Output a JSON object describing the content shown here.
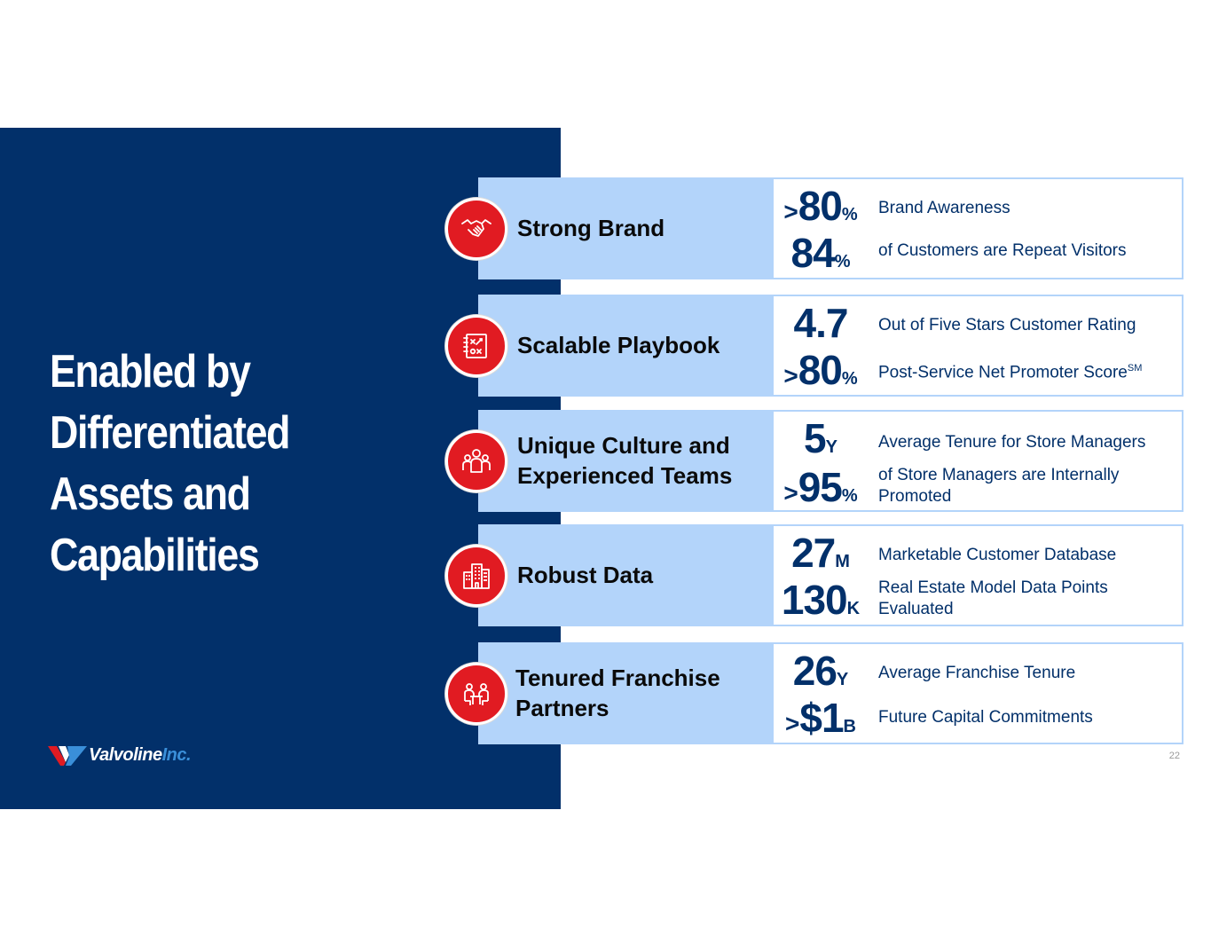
{
  "headline": {
    "line1": "Enabled by",
    "line2": "Differentiated",
    "line3": "Assets and",
    "line4": "Capabilities"
  },
  "logo": {
    "name": "Valvoline",
    "suffix": "Inc."
  },
  "page_number": "22",
  "colors": {
    "navy": "#02306a",
    "light_blue": "#b3d4fa",
    "red": "#e11b22"
  },
  "rows": [
    {
      "icon": "handshake-icon",
      "label_line1": "Strong Brand",
      "label_line2": "",
      "metrics": [
        {
          "prefix": ">",
          "value": "80",
          "suffix": "%",
          "description": "Brand Awareness",
          "sup": ""
        },
        {
          "prefix": "",
          "value": "84",
          "suffix": "%",
          "description": "of Customers are Repeat Visitors",
          "sup": ""
        }
      ]
    },
    {
      "icon": "playbook-icon",
      "label_line1": "Scalable Playbook",
      "label_line2": "",
      "metrics": [
        {
          "prefix": "",
          "value": "4.7",
          "suffix": "",
          "description": "Out of Five Stars Customer Rating",
          "sup": ""
        },
        {
          "prefix": ">",
          "value": "80",
          "suffix": "%",
          "description": "Post-Service Net Promoter Score",
          "sup": "SM"
        }
      ]
    },
    {
      "icon": "team-icon",
      "label_line1": "Unique Culture and",
      "label_line2": "Experienced Teams",
      "metrics": [
        {
          "prefix": "",
          "value": "5",
          "suffix": "Y",
          "description": "Average Tenure for Store Managers",
          "sup": ""
        },
        {
          "prefix": ">",
          "value": "95",
          "suffix": "%",
          "description": "of Store Managers are Internally Promoted",
          "sup": ""
        }
      ]
    },
    {
      "icon": "buildings-icon",
      "label_line1": "Robust Data",
      "label_line2": "",
      "metrics": [
        {
          "prefix": "",
          "value": "27",
          "suffix": "M",
          "description": "Marketable Customer Database",
          "sup": ""
        },
        {
          "prefix": "",
          "value": "130",
          "suffix": "K",
          "description": "Real Estate Model Data Points Evaluated",
          "sup": ""
        }
      ]
    },
    {
      "icon": "meeting-icon",
      "label_line1": "Tenured Franchise",
      "label_line2": "Partners",
      "metrics": [
        {
          "prefix": "",
          "value": "26",
          "suffix": "Y",
          "description": "Average Franchise Tenure",
          "sup": ""
        },
        {
          "prefix": ">",
          "value": "$1",
          "suffix": "B",
          "description": "Future Capital Commitments",
          "sup": ""
        }
      ]
    }
  ]
}
